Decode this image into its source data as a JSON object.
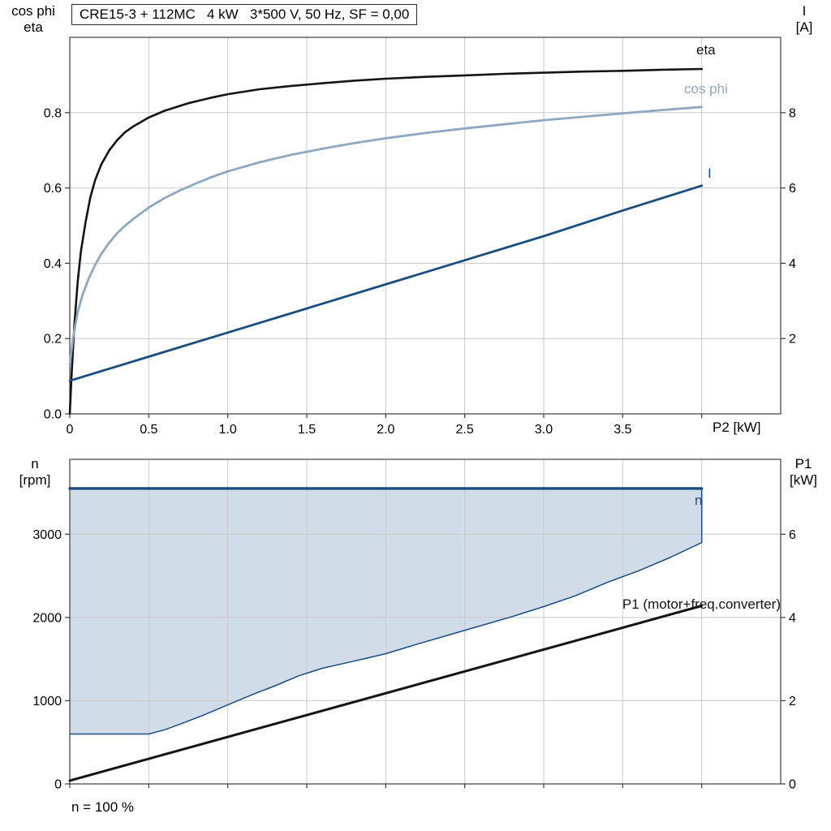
{
  "title_box": "CRE15-3 + 112MC   4 kW   3*500 V, 50 Hz, SF = 0,00",
  "axis_labels": {
    "top_left_line1": "cos phi",
    "top_left_line2": "eta",
    "top_right_line1": "I",
    "top_right_line2": "[A]",
    "bottom_left_line1": "n",
    "bottom_left_line2": "[rpm]",
    "bottom_right_line1": "P1",
    "bottom_right_line2": "[kW]",
    "x_axis": "P2 [kW]",
    "footnote": "n = 100 %"
  },
  "curve_labels": {
    "eta": "eta",
    "cos_phi": "cos phi",
    "current": "I",
    "speed": "n",
    "p1": "P1 (motor+freq.converter)"
  },
  "colors": {
    "black": "#141414",
    "dark_blue": "#1a4e7e",
    "light_blue": "#8fa8c2",
    "fill_blue": "#cdd9e7",
    "grid": "#c9c9c9",
    "frame": "#3c3c3c"
  },
  "chart_data": [
    {
      "type": "line",
      "name": "motor-performance",
      "title": "CRE15-3 + 112MC   4 kW   3*500 V, 50 Hz, SF = 0,00",
      "xlabel": "P2 [kW]",
      "x_range": [
        0,
        4.5
      ],
      "x_ticks": [
        0,
        0.5,
        1,
        1.5,
        2,
        2.5,
        3,
        3.5
      ],
      "x_tick_labels": [
        "0",
        "0.5",
        "1.0",
        "1.5",
        "2.0",
        "2.5",
        "3.0",
        "3.5"
      ],
      "x_grid": [
        0.5,
        1,
        1.5,
        2,
        2.5,
        3,
        3.5,
        4
      ],
      "left_axis": {
        "label": "cos phi / eta",
        "range": [
          0,
          1
        ],
        "ticks": [
          0,
          0.2,
          0.4,
          0.6,
          0.8
        ],
        "tick_labels": [
          "0.0",
          "0.2",
          "0.4",
          "0.6",
          "0.8"
        ]
      },
      "right_axis": {
        "label": "I [A]",
        "range": [
          0,
          10
        ],
        "ticks": [
          2,
          4,
          6,
          8
        ],
        "tick_labels": [
          "2",
          "4",
          "6",
          "8"
        ]
      },
      "legend_position": "labels-at-curve-ends",
      "series": [
        {
          "name": "eta",
          "axis": "left",
          "color_key": "black",
          "width": 2.6,
          "points": [
            [
              0,
              0
            ],
            [
              0.01,
              0.09
            ],
            [
              0.02,
              0.17
            ],
            [
              0.03,
              0.24
            ],
            [
              0.05,
              0.35
            ],
            [
              0.07,
              0.43
            ],
            [
              0.1,
              0.51
            ],
            [
              0.13,
              0.575
            ],
            [
              0.16,
              0.62
            ],
            [
              0.2,
              0.663
            ],
            [
              0.25,
              0.7
            ],
            [
              0.3,
              0.727
            ],
            [
              0.35,
              0.748
            ],
            [
              0.4,
              0.763
            ],
            [
              0.5,
              0.787
            ],
            [
              0.6,
              0.805
            ],
            [
              0.75,
              0.825
            ],
            [
              0.9,
              0.84
            ],
            [
              1,
              0.849
            ],
            [
              1.2,
              0.862
            ],
            [
              1.4,
              0.871
            ],
            [
              1.6,
              0.878
            ],
            [
              1.8,
              0.885
            ],
            [
              2,
              0.89
            ],
            [
              2.25,
              0.895
            ],
            [
              2.5,
              0.899
            ],
            [
              2.75,
              0.903
            ],
            [
              3,
              0.906
            ],
            [
              3.25,
              0.909
            ],
            [
              3.5,
              0.911
            ],
            [
              3.75,
              0.914
            ],
            [
              4,
              0.916
            ]
          ]
        },
        {
          "name": "cos phi",
          "axis": "left",
          "color_key": "light_blue",
          "width": 2.8,
          "points": [
            [
              0,
              0.13
            ],
            [
              0.02,
              0.2
            ],
            [
              0.05,
              0.27
            ],
            [
              0.08,
              0.315
            ],
            [
              0.12,
              0.36
            ],
            [
              0.16,
              0.395
            ],
            [
              0.2,
              0.425
            ],
            [
              0.25,
              0.455
            ],
            [
              0.3,
              0.48
            ],
            [
              0.35,
              0.5
            ],
            [
              0.4,
              0.517
            ],
            [
              0.5,
              0.548
            ],
            [
              0.6,
              0.573
            ],
            [
              0.7,
              0.594
            ],
            [
              0.8,
              0.612
            ],
            [
              0.9,
              0.629
            ],
            [
              1,
              0.644
            ],
            [
              1.2,
              0.668
            ],
            [
              1.4,
              0.688
            ],
            [
              1.6,
              0.704
            ],
            [
              1.8,
              0.719
            ],
            [
              2,
              0.732
            ],
            [
              2.25,
              0.746
            ],
            [
              2.5,
              0.758
            ],
            [
              2.75,
              0.769
            ],
            [
              3,
              0.78
            ],
            [
              3.25,
              0.789
            ],
            [
              3.5,
              0.798
            ],
            [
              3.75,
              0.807
            ],
            [
              4,
              0.815
            ]
          ]
        },
        {
          "name": "I",
          "axis": "right",
          "color_key": "dark_blue",
          "width": 2.8,
          "points": [
            [
              0,
              0.88
            ],
            [
              0.5,
              1.52
            ],
            [
              1,
              2.16
            ],
            [
              1.5,
              2.8
            ],
            [
              2,
              3.44
            ],
            [
              2.5,
              4.08
            ],
            [
              3,
              4.72
            ],
            [
              3.5,
              5.4
            ],
            [
              4,
              6.06
            ]
          ]
        }
      ]
    },
    {
      "type": "area-line",
      "name": "speed-range",
      "x_range": [
        0,
        4.5
      ],
      "x_grid": [
        0.5,
        1,
        1.5,
        2,
        2.5,
        3,
        3.5,
        4
      ],
      "left_axis": {
        "label": "n [rpm]",
        "range": [
          0,
          3900
        ],
        "ticks": [
          0,
          1000,
          2000,
          3000
        ],
        "tick_labels": [
          "0",
          "1000",
          "2000",
          "3000"
        ]
      },
      "right_axis": {
        "label": "P1 [kW]",
        "range": [
          0,
          7.8
        ],
        "ticks": [
          0,
          2,
          4,
          6
        ],
        "tick_labels": [
          "0",
          "2",
          "4",
          "6"
        ]
      },
      "region": {
        "name": "speed-duty-range",
        "color_key": "fill_blue",
        "border_color_key": "dark_blue",
        "upper_rpm": 3550,
        "right_edge_x": 4,
        "lower_points": [
          [
            0,
            600
          ],
          [
            0.5,
            600
          ],
          [
            0.6,
            650
          ],
          [
            0.7,
            720
          ],
          [
            0.85,
            830
          ],
          [
            1,
            950
          ],
          [
            1.15,
            1070
          ],
          [
            1.3,
            1180
          ],
          [
            1.45,
            1300
          ],
          [
            1.6,
            1390
          ],
          [
            1.75,
            1455
          ],
          [
            1.9,
            1520
          ],
          [
            2,
            1565
          ],
          [
            2.2,
            1680
          ],
          [
            2.4,
            1790
          ],
          [
            2.6,
            1900
          ],
          [
            2.8,
            2010
          ],
          [
            3,
            2130
          ],
          [
            3.2,
            2260
          ],
          [
            3.4,
            2420
          ],
          [
            3.6,
            2560
          ],
          [
            3.8,
            2720
          ],
          [
            4,
            2900
          ]
        ]
      },
      "series": [
        {
          "name": "n",
          "axis": "left",
          "color_key": "dark_blue",
          "width": 3.4,
          "points": [
            [
              0,
              3550
            ],
            [
              4,
              3550
            ]
          ]
        },
        {
          "name": "P1 motor+freq.converter",
          "axis": "right",
          "color_key": "black",
          "width": 3,
          "points": [
            [
              0,
              0.08
            ],
            [
              4,
              4.28
            ]
          ]
        }
      ]
    }
  ]
}
